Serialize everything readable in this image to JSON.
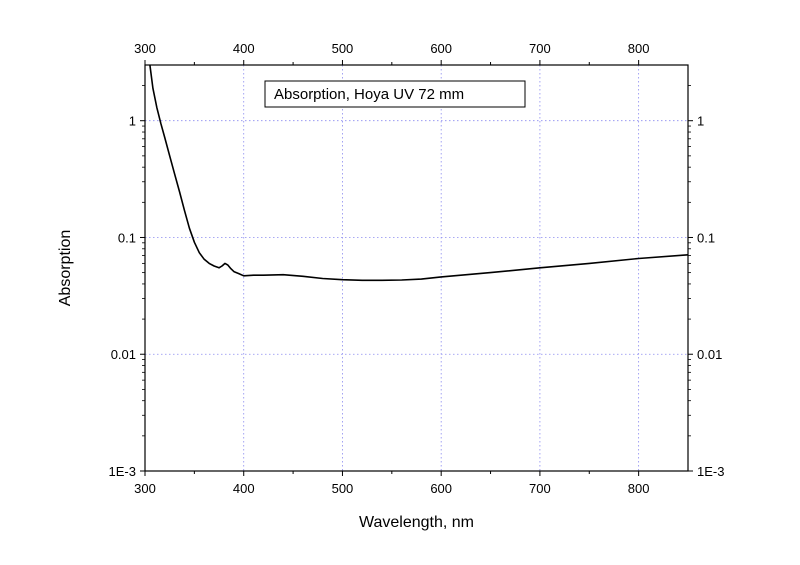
{
  "chart_data": {
    "type": "line",
    "title": "",
    "xlabel": "Wavelength, nm",
    "ylabel": "Absorption",
    "xlim": [
      300,
      850
    ],
    "ylim": [
      0.001,
      3.0
    ],
    "yscale": "log",
    "grid": true,
    "mirror_axes": "top and right axes repeat tick labels",
    "x_ticks": [
      300,
      400,
      500,
      600,
      700,
      800
    ],
    "x_tick_labels": [
      "300",
      "400",
      "500",
      "600",
      "700",
      "800"
    ],
    "y_ticks": [
      0.001,
      0.01,
      0.1,
      1
    ],
    "y_tick_labels": [
      "1E-3",
      "0.01",
      "0.1",
      "1"
    ],
    "legend": {
      "text": "Absorption, Hoya UV 72 mm",
      "placement": "top-center"
    },
    "colors": {
      "line": "#000000",
      "grid": "#8c8cf0",
      "axes": "#000000"
    },
    "series": [
      {
        "x": [
          305,
          308,
          312,
          316,
          320,
          325,
          330,
          335,
          340,
          345,
          350,
          355,
          360,
          365,
          370,
          375,
          378,
          381,
          384,
          387,
          390,
          395,
          400,
          410,
          420,
          440,
          460,
          480,
          500,
          520,
          540,
          560,
          580,
          600,
          650,
          700,
          750,
          800,
          850
        ],
        "y": [
          3.0,
          1.9,
          1.3,
          0.95,
          0.72,
          0.5,
          0.35,
          0.245,
          0.17,
          0.12,
          0.091,
          0.074,
          0.065,
          0.06,
          0.057,
          0.055,
          0.057,
          0.06,
          0.058,
          0.054,
          0.051,
          0.049,
          0.047,
          0.0475,
          0.0475,
          0.048,
          0.0465,
          0.0445,
          0.0435,
          0.043,
          0.043,
          0.0432,
          0.044,
          0.046,
          0.05,
          0.055,
          0.06,
          0.066,
          0.071
        ]
      }
    ]
  }
}
